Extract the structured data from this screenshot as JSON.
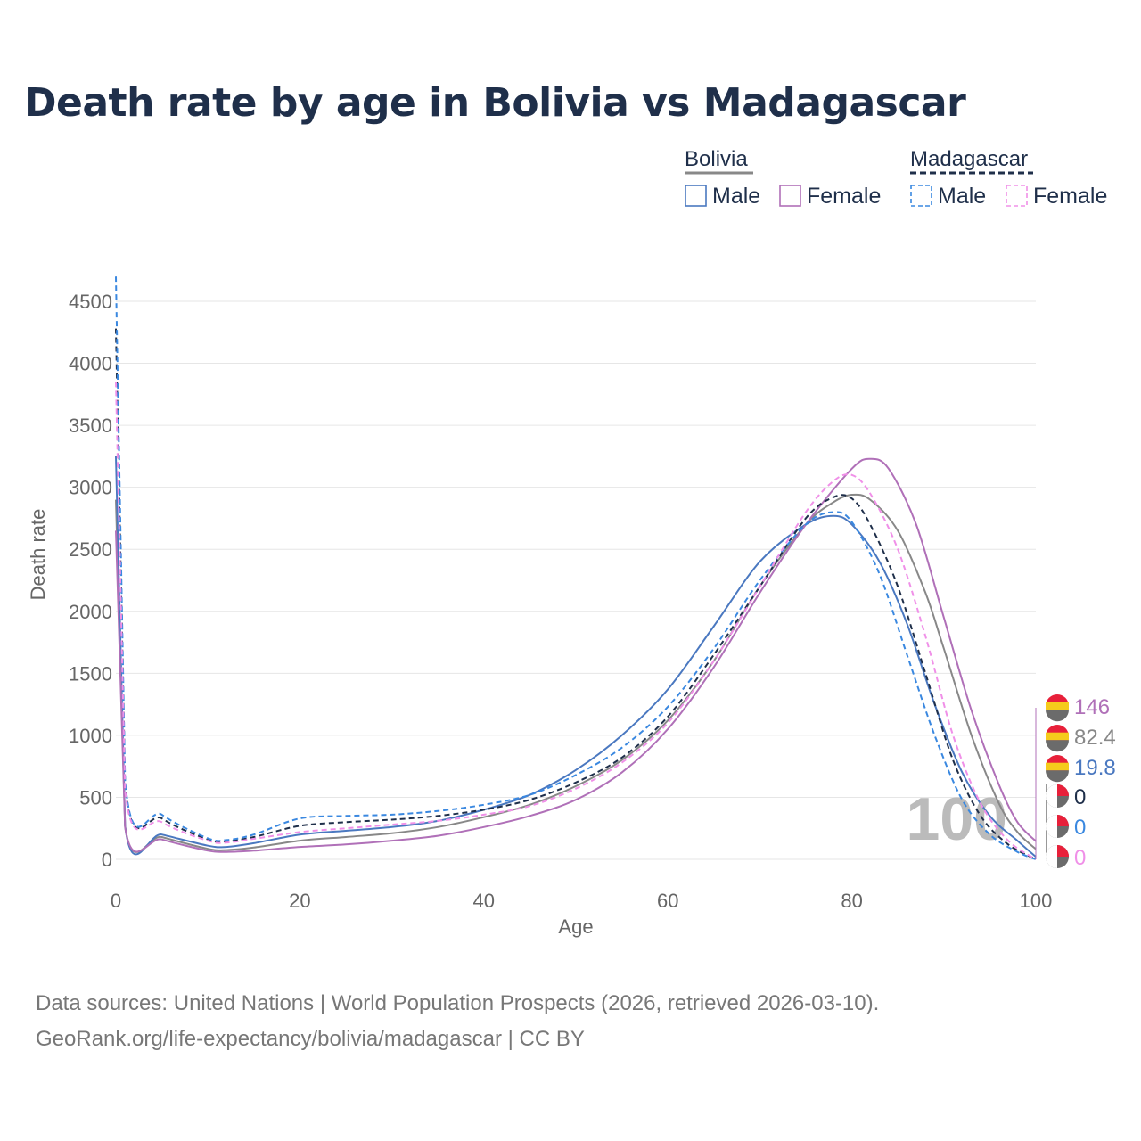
{
  "title": "Death rate by age in Bolivia vs Madagascar",
  "source_line1": "Data sources: United Nations | World Population Prospects (2026, retrieved 2026-03-10).",
  "source_line2": "GeoRank.org/life-expectancy/bolivia/madagascar | CC BY",
  "legend": {
    "groups": [
      {
        "name": "Bolivia",
        "style": "solid",
        "color": "#888888"
      },
      {
        "name": "Madagascar",
        "style": "dashed",
        "color": "#1f2f4a"
      }
    ],
    "items": [
      {
        "label": "Male",
        "group": "Bolivia",
        "color": "#4a78c0",
        "dash": false
      },
      {
        "label": "Female",
        "group": "Bolivia",
        "color": "#b070b8",
        "dash": false
      },
      {
        "label": "Male",
        "group": "Madagascar",
        "color": "#3a88e0",
        "dash": true
      },
      {
        "label": "Female",
        "group": "Madagascar",
        "color": "#f090e8",
        "dash": true
      }
    ]
  },
  "chart_data": {
    "type": "line",
    "title": "Death rate by age in Bolivia vs Madagascar",
    "xlabel": "Age",
    "ylabel": "Death rate",
    "xlim": [
      0,
      100
    ],
    "ylim": [
      0,
      4700
    ],
    "xticks": [
      0,
      20,
      40,
      60,
      80,
      100
    ],
    "yticks": [
      0,
      500,
      1000,
      1500,
      2000,
      2500,
      3000,
      3500,
      4000,
      4500
    ],
    "grid": true,
    "watermark_age": "100",
    "series": [
      {
        "name": "Bolivia Total",
        "color": "#888888",
        "dash": false,
        "points": [
          [
            0,
            2900
          ],
          [
            1,
            270
          ],
          [
            5,
            180
          ],
          [
            10,
            85
          ],
          [
            12,
            75
          ],
          [
            15,
            95
          ],
          [
            20,
            150
          ],
          [
            25,
            180
          ],
          [
            30,
            210
          ],
          [
            35,
            260
          ],
          [
            40,
            340
          ],
          [
            45,
            440
          ],
          [
            50,
            590
          ],
          [
            55,
            800
          ],
          [
            60,
            1120
          ],
          [
            65,
            1600
          ],
          [
            70,
            2200
          ],
          [
            75,
            2700
          ],
          [
            78,
            2880
          ],
          [
            80,
            2940
          ],
          [
            82,
            2900
          ],
          [
            85,
            2650
          ],
          [
            88,
            2150
          ],
          [
            90,
            1700
          ],
          [
            93,
            1000
          ],
          [
            96,
            450
          ],
          [
            98,
            220
          ],
          [
            100,
            82.4
          ]
        ]
      },
      {
        "name": "Bolivia Male",
        "color": "#4a78c0",
        "dash": false,
        "points": [
          [
            0,
            3250
          ],
          [
            1,
            270
          ],
          [
            5,
            200
          ],
          [
            10,
            110
          ],
          [
            12,
            100
          ],
          [
            15,
            130
          ],
          [
            20,
            200
          ],
          [
            25,
            230
          ],
          [
            30,
            260
          ],
          [
            35,
            310
          ],
          [
            40,
            400
          ],
          [
            45,
            520
          ],
          [
            50,
            720
          ],
          [
            55,
            1000
          ],
          [
            60,
            1370
          ],
          [
            65,
            1880
          ],
          [
            70,
            2400
          ],
          [
            75,
            2700
          ],
          [
            78,
            2770
          ],
          [
            80,
            2700
          ],
          [
            83,
            2400
          ],
          [
            86,
            1900
          ],
          [
            89,
            1250
          ],
          [
            92,
            700
          ],
          [
            95,
            350
          ],
          [
            98,
            150
          ],
          [
            100,
            19.8
          ]
        ]
      },
      {
        "name": "Bolivia Female",
        "color": "#b070b8",
        "dash": false,
        "points": [
          [
            0,
            2650
          ],
          [
            1,
            260
          ],
          [
            5,
            160
          ],
          [
            10,
            70
          ],
          [
            12,
            60
          ],
          [
            15,
            70
          ],
          [
            20,
            100
          ],
          [
            25,
            120
          ],
          [
            30,
            150
          ],
          [
            35,
            190
          ],
          [
            40,
            260
          ],
          [
            45,
            350
          ],
          [
            50,
            480
          ],
          [
            55,
            700
          ],
          [
            60,
            1050
          ],
          [
            65,
            1550
          ],
          [
            70,
            2150
          ],
          [
            75,
            2700
          ],
          [
            80,
            3150
          ],
          [
            82,
            3230
          ],
          [
            84,
            3150
          ],
          [
            87,
            2700
          ],
          [
            90,
            1950
          ],
          [
            93,
            1200
          ],
          [
            96,
            600
          ],
          [
            98,
            300
          ],
          [
            100,
            146
          ]
        ]
      },
      {
        "name": "Madagascar Total",
        "color": "#1f2f4a",
        "dash": true,
        "points": [
          [
            0,
            4280
          ],
          [
            1,
            600
          ],
          [
            5,
            330
          ],
          [
            10,
            160
          ],
          [
            12,
            145
          ],
          [
            15,
            180
          ],
          [
            20,
            270
          ],
          [
            25,
            300
          ],
          [
            30,
            320
          ],
          [
            35,
            350
          ],
          [
            40,
            400
          ],
          [
            45,
            480
          ],
          [
            50,
            620
          ],
          [
            55,
            820
          ],
          [
            60,
            1150
          ],
          [
            65,
            1650
          ],
          [
            70,
            2200
          ],
          [
            75,
            2750
          ],
          [
            78,
            2920
          ],
          [
            80,
            2910
          ],
          [
            82,
            2700
          ],
          [
            85,
            2200
          ],
          [
            88,
            1500
          ],
          [
            91,
            800
          ],
          [
            94,
            350
          ],
          [
            97,
            120
          ],
          [
            100,
            0
          ]
        ]
      },
      {
        "name": "Madagascar Male",
        "color": "#3a88e0",
        "dash": true,
        "points": [
          [
            0,
            4700
          ],
          [
            1,
            640
          ],
          [
            5,
            360
          ],
          [
            10,
            170
          ],
          [
            12,
            155
          ],
          [
            15,
            200
          ],
          [
            20,
            330
          ],
          [
            25,
            350
          ],
          [
            30,
            360
          ],
          [
            35,
            390
          ],
          [
            40,
            440
          ],
          [
            45,
            520
          ],
          [
            50,
            680
          ],
          [
            55,
            900
          ],
          [
            60,
            1230
          ],
          [
            65,
            1700
          ],
          [
            70,
            2250
          ],
          [
            75,
            2700
          ],
          [
            78,
            2800
          ],
          [
            80,
            2720
          ],
          [
            83,
            2300
          ],
          [
            86,
            1650
          ],
          [
            89,
            1000
          ],
          [
            92,
            480
          ],
          [
            95,
            200
          ],
          [
            98,
            60
          ],
          [
            100,
            0
          ]
        ]
      },
      {
        "name": "Madagascar Female",
        "color": "#f090e8",
        "dash": true,
        "points": [
          [
            0,
            3850
          ],
          [
            1,
            560
          ],
          [
            5,
            300
          ],
          [
            10,
            150
          ],
          [
            12,
            135
          ],
          [
            15,
            165
          ],
          [
            20,
            220
          ],
          [
            25,
            250
          ],
          [
            30,
            280
          ],
          [
            35,
            310
          ],
          [
            40,
            360
          ],
          [
            45,
            430
          ],
          [
            50,
            570
          ],
          [
            55,
            780
          ],
          [
            60,
            1100
          ],
          [
            65,
            1600
          ],
          [
            70,
            2200
          ],
          [
            75,
            2800
          ],
          [
            78,
            3050
          ],
          [
            80,
            3100
          ],
          [
            82,
            2950
          ],
          [
            85,
            2500
          ],
          [
            88,
            1800
          ],
          [
            91,
            1000
          ],
          [
            94,
            450
          ],
          [
            97,
            150
          ],
          [
            100,
            0
          ]
        ]
      }
    ],
    "end_labels": [
      {
        "value": "146",
        "color": "#b070b8",
        "flag": "bolivia"
      },
      {
        "value": "82.4",
        "color": "#888888",
        "flag": "bolivia"
      },
      {
        "value": "19.8",
        "color": "#4a78c0",
        "flag": "bolivia"
      },
      {
        "value": "0",
        "color": "#1f2f4a",
        "flag": "madagascar"
      },
      {
        "value": "0",
        "color": "#3a88e0",
        "flag": "madagascar"
      },
      {
        "value": "0",
        "color": "#f090e8",
        "flag": "madagascar"
      }
    ]
  }
}
